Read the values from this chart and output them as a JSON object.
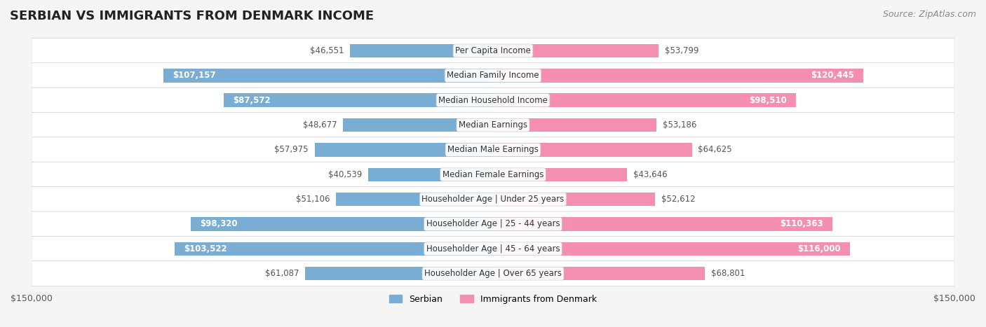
{
  "title": "SERBIAN VS IMMIGRANTS FROM DENMARK INCOME",
  "source": "Source: ZipAtlas.com",
  "categories": [
    "Per Capita Income",
    "Median Family Income",
    "Median Household Income",
    "Median Earnings",
    "Median Male Earnings",
    "Median Female Earnings",
    "Householder Age | Under 25 years",
    "Householder Age | 25 - 44 years",
    "Householder Age | 45 - 64 years",
    "Householder Age | Over 65 years"
  ],
  "serbian_values": [
    46551,
    107157,
    87572,
    48677,
    57975,
    40539,
    51106,
    98320,
    103522,
    61087
  ],
  "denmark_values": [
    53799,
    120445,
    98510,
    53186,
    64625,
    43646,
    52612,
    110363,
    116000,
    68801
  ],
  "serbian_labels": [
    "$46,551",
    "$107,157",
    "$87,572",
    "$48,677",
    "$57,975",
    "$40,539",
    "$51,106",
    "$98,320",
    "$103,522",
    "$61,087"
  ],
  "denmark_labels": [
    "$53,799",
    "$120,445",
    "$98,510",
    "$53,186",
    "$64,625",
    "$43,646",
    "$52,612",
    "$110,363",
    "$116,000",
    "$68,801"
  ],
  "serbian_color": "#7aadd4",
  "denmark_color": "#f48fb1",
  "serbian_label_inside": [
    false,
    true,
    true,
    false,
    false,
    false,
    false,
    true,
    true,
    false
  ],
  "denmark_label_inside": [
    false,
    true,
    true,
    false,
    false,
    false,
    false,
    true,
    true,
    false
  ],
  "x_max": 150000,
  "bar_height": 0.55,
  "bg_color": "#f5f5f5",
  "row_bg_color": "#ffffff",
  "legend_serbian": "Serbian",
  "legend_denmark": "Immigrants from Denmark",
  "x_tick_label_left": "$150,000",
  "x_tick_label_right": "$150,000",
  "title_fontsize": 13,
  "source_fontsize": 9,
  "label_fontsize": 8.5,
  "category_fontsize": 8.5
}
